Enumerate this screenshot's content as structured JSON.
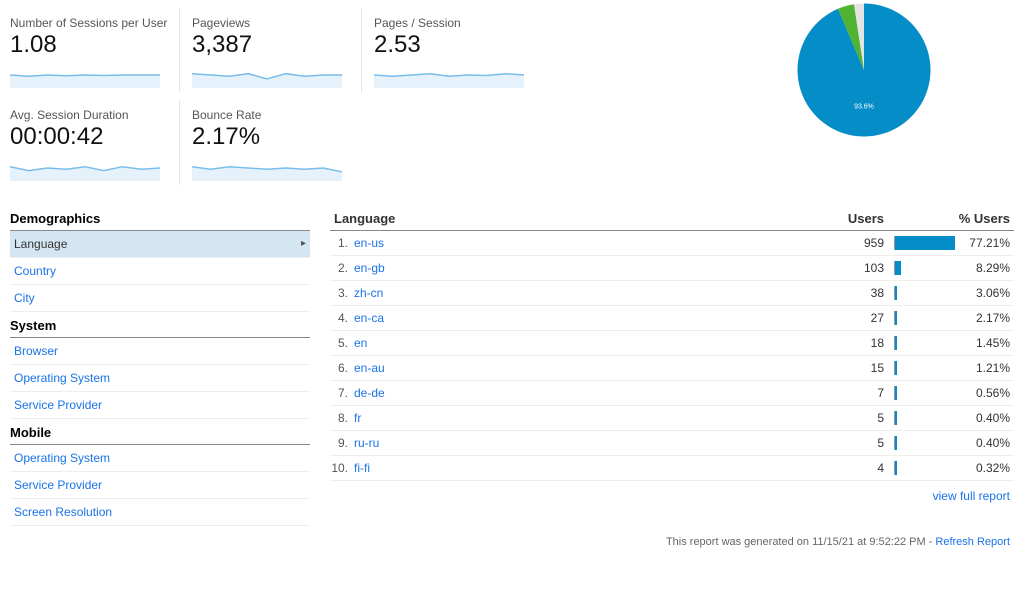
{
  "metrics": {
    "sessionsPerUser": {
      "label": "Number of Sessions per User",
      "value": "1.08"
    },
    "pageviews": {
      "label": "Pageviews",
      "value": "3,387"
    },
    "pagesPerSession": {
      "label": "Pages / Session",
      "value": "2.53"
    },
    "avgSessionDuration": {
      "label": "Avg. Session Duration",
      "value": "00:00:42"
    },
    "bounceRate": {
      "label": "Bounce Rate",
      "value": "2.17%"
    }
  },
  "sparkline": {
    "stroke": "#79bde9",
    "fill": "#e6f2fb",
    "points": {
      "sessionsPerUser": [
        0.5,
        0.45,
        0.5,
        0.47,
        0.5,
        0.48,
        0.5,
        0.5,
        0.5
      ],
      "pageviews": [
        0.55,
        0.5,
        0.45,
        0.55,
        0.35,
        0.55,
        0.45,
        0.5,
        0.5
      ],
      "pagesPerSession": [
        0.5,
        0.45,
        0.5,
        0.55,
        0.45,
        0.5,
        0.48,
        0.55,
        0.5
      ],
      "avgSessionDuration": [
        0.55,
        0.4,
        0.5,
        0.45,
        0.55,
        0.4,
        0.55,
        0.45,
        0.5
      ],
      "bounceRate": [
        0.55,
        0.45,
        0.55,
        0.5,
        0.45,
        0.5,
        0.45,
        0.5,
        0.35
      ]
    }
  },
  "pie": {
    "type": "pie",
    "slices": [
      {
        "pct": 93.6,
        "color": "#058dc7",
        "label": "93.6%"
      },
      {
        "pct": 4.0,
        "color": "#50b432"
      },
      {
        "pct": 2.4,
        "color": "#e3e3e3"
      }
    ],
    "label_color": "#ffffff",
    "label_fontsize": 10
  },
  "dimensions": {
    "groups": [
      {
        "title": "Demographics",
        "items": [
          {
            "label": "Language",
            "selected": true
          },
          {
            "label": "Country"
          },
          {
            "label": "City"
          }
        ]
      },
      {
        "title": "System",
        "items": [
          {
            "label": "Browser"
          },
          {
            "label": "Operating System"
          },
          {
            "label": "Service Provider"
          }
        ]
      },
      {
        "title": "Mobile",
        "items": [
          {
            "label": "Operating System"
          },
          {
            "label": "Service Provider"
          },
          {
            "label": "Screen Resolution"
          }
        ]
      }
    ]
  },
  "table": {
    "header": {
      "dim": "Language",
      "users": "Users",
      "pctUsers": "% Users"
    },
    "bar_color": "#058dc7",
    "rows": [
      {
        "n": "1.",
        "lang": "en-us",
        "users": "959",
        "pct": "77.21%",
        "barPct": 100
      },
      {
        "n": "2.",
        "lang": "en-gb",
        "users": "103",
        "pct": "8.29%",
        "barPct": 10.7
      },
      {
        "n": "3.",
        "lang": "zh-cn",
        "users": "38",
        "pct": "3.06%",
        "barPct": 4.0
      },
      {
        "n": "4.",
        "lang": "en-ca",
        "users": "27",
        "pct": "2.17%",
        "barPct": 2.8
      },
      {
        "n": "5.",
        "lang": "en",
        "users": "18",
        "pct": "1.45%",
        "barPct": 1.9
      },
      {
        "n": "6.",
        "lang": "en-au",
        "users": "15",
        "pct": "1.21%",
        "barPct": 1.6
      },
      {
        "n": "7.",
        "lang": "de-de",
        "users": "7",
        "pct": "0.56%",
        "barPct": 0.7
      },
      {
        "n": "8.",
        "lang": "fr",
        "users": "5",
        "pct": "0.40%",
        "barPct": 0.5
      },
      {
        "n": "9.",
        "lang": "ru-ru",
        "users": "5",
        "pct": "0.40%",
        "barPct": 0.5
      },
      {
        "n": "10.",
        "lang": "fi-fi",
        "users": "4",
        "pct": "0.32%",
        "barPct": 0.4
      }
    ],
    "viewFull": "view full report"
  },
  "footer": {
    "text": "This report was generated on 11/15/21 at 9:52:22 PM - ",
    "refresh": "Refresh Report"
  }
}
